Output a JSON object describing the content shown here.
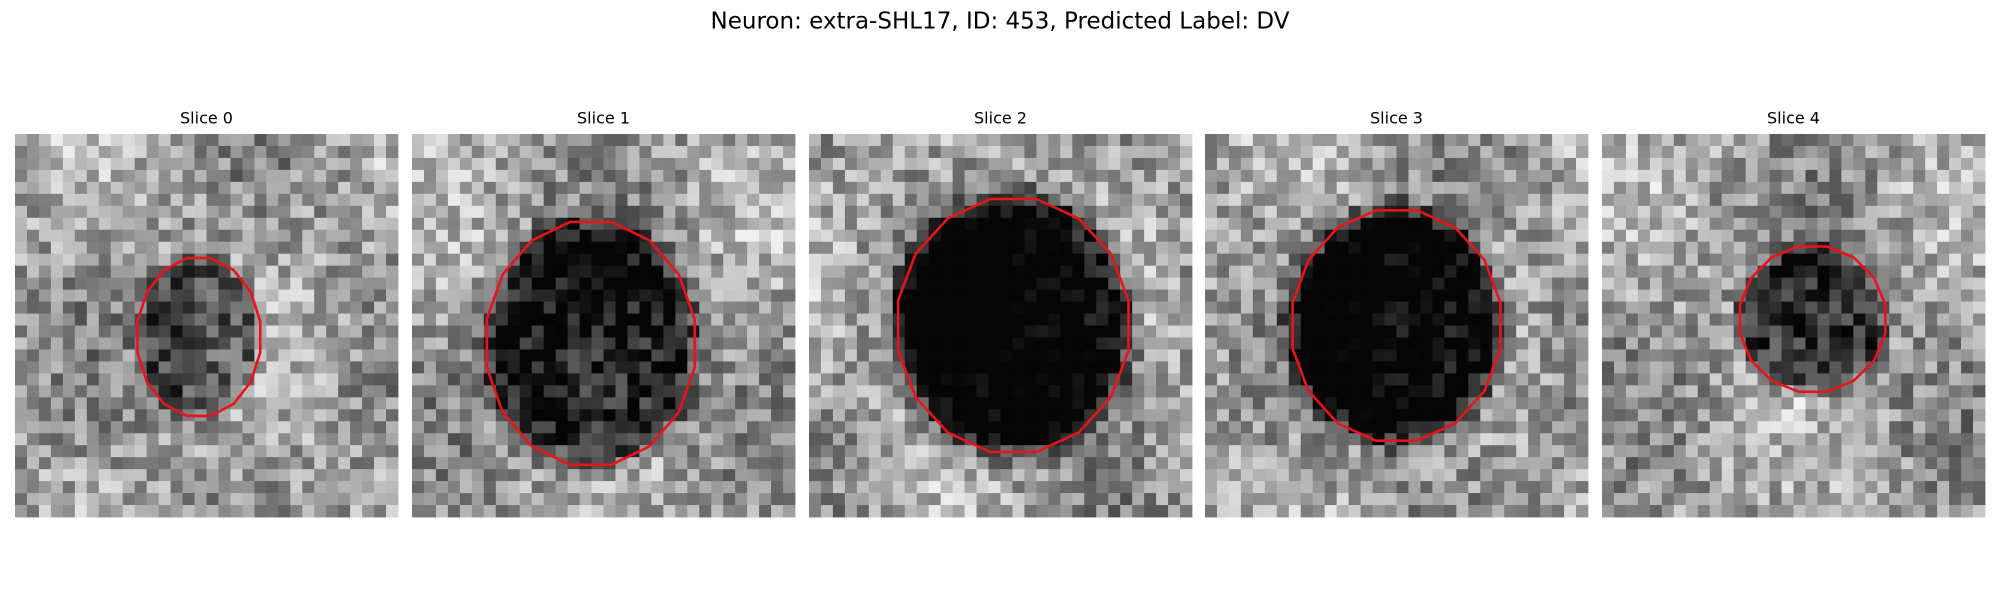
{
  "title": "Neuron: extra-SHL17, ID: 453, Predicted Label: DV",
  "panels": [
    {
      "title": "Slice 0"
    },
    {
      "title": "Slice 1"
    },
    {
      "title": "Slice 2"
    },
    {
      "title": "Slice 3"
    },
    {
      "title": "Slice 4"
    }
  ]
}
